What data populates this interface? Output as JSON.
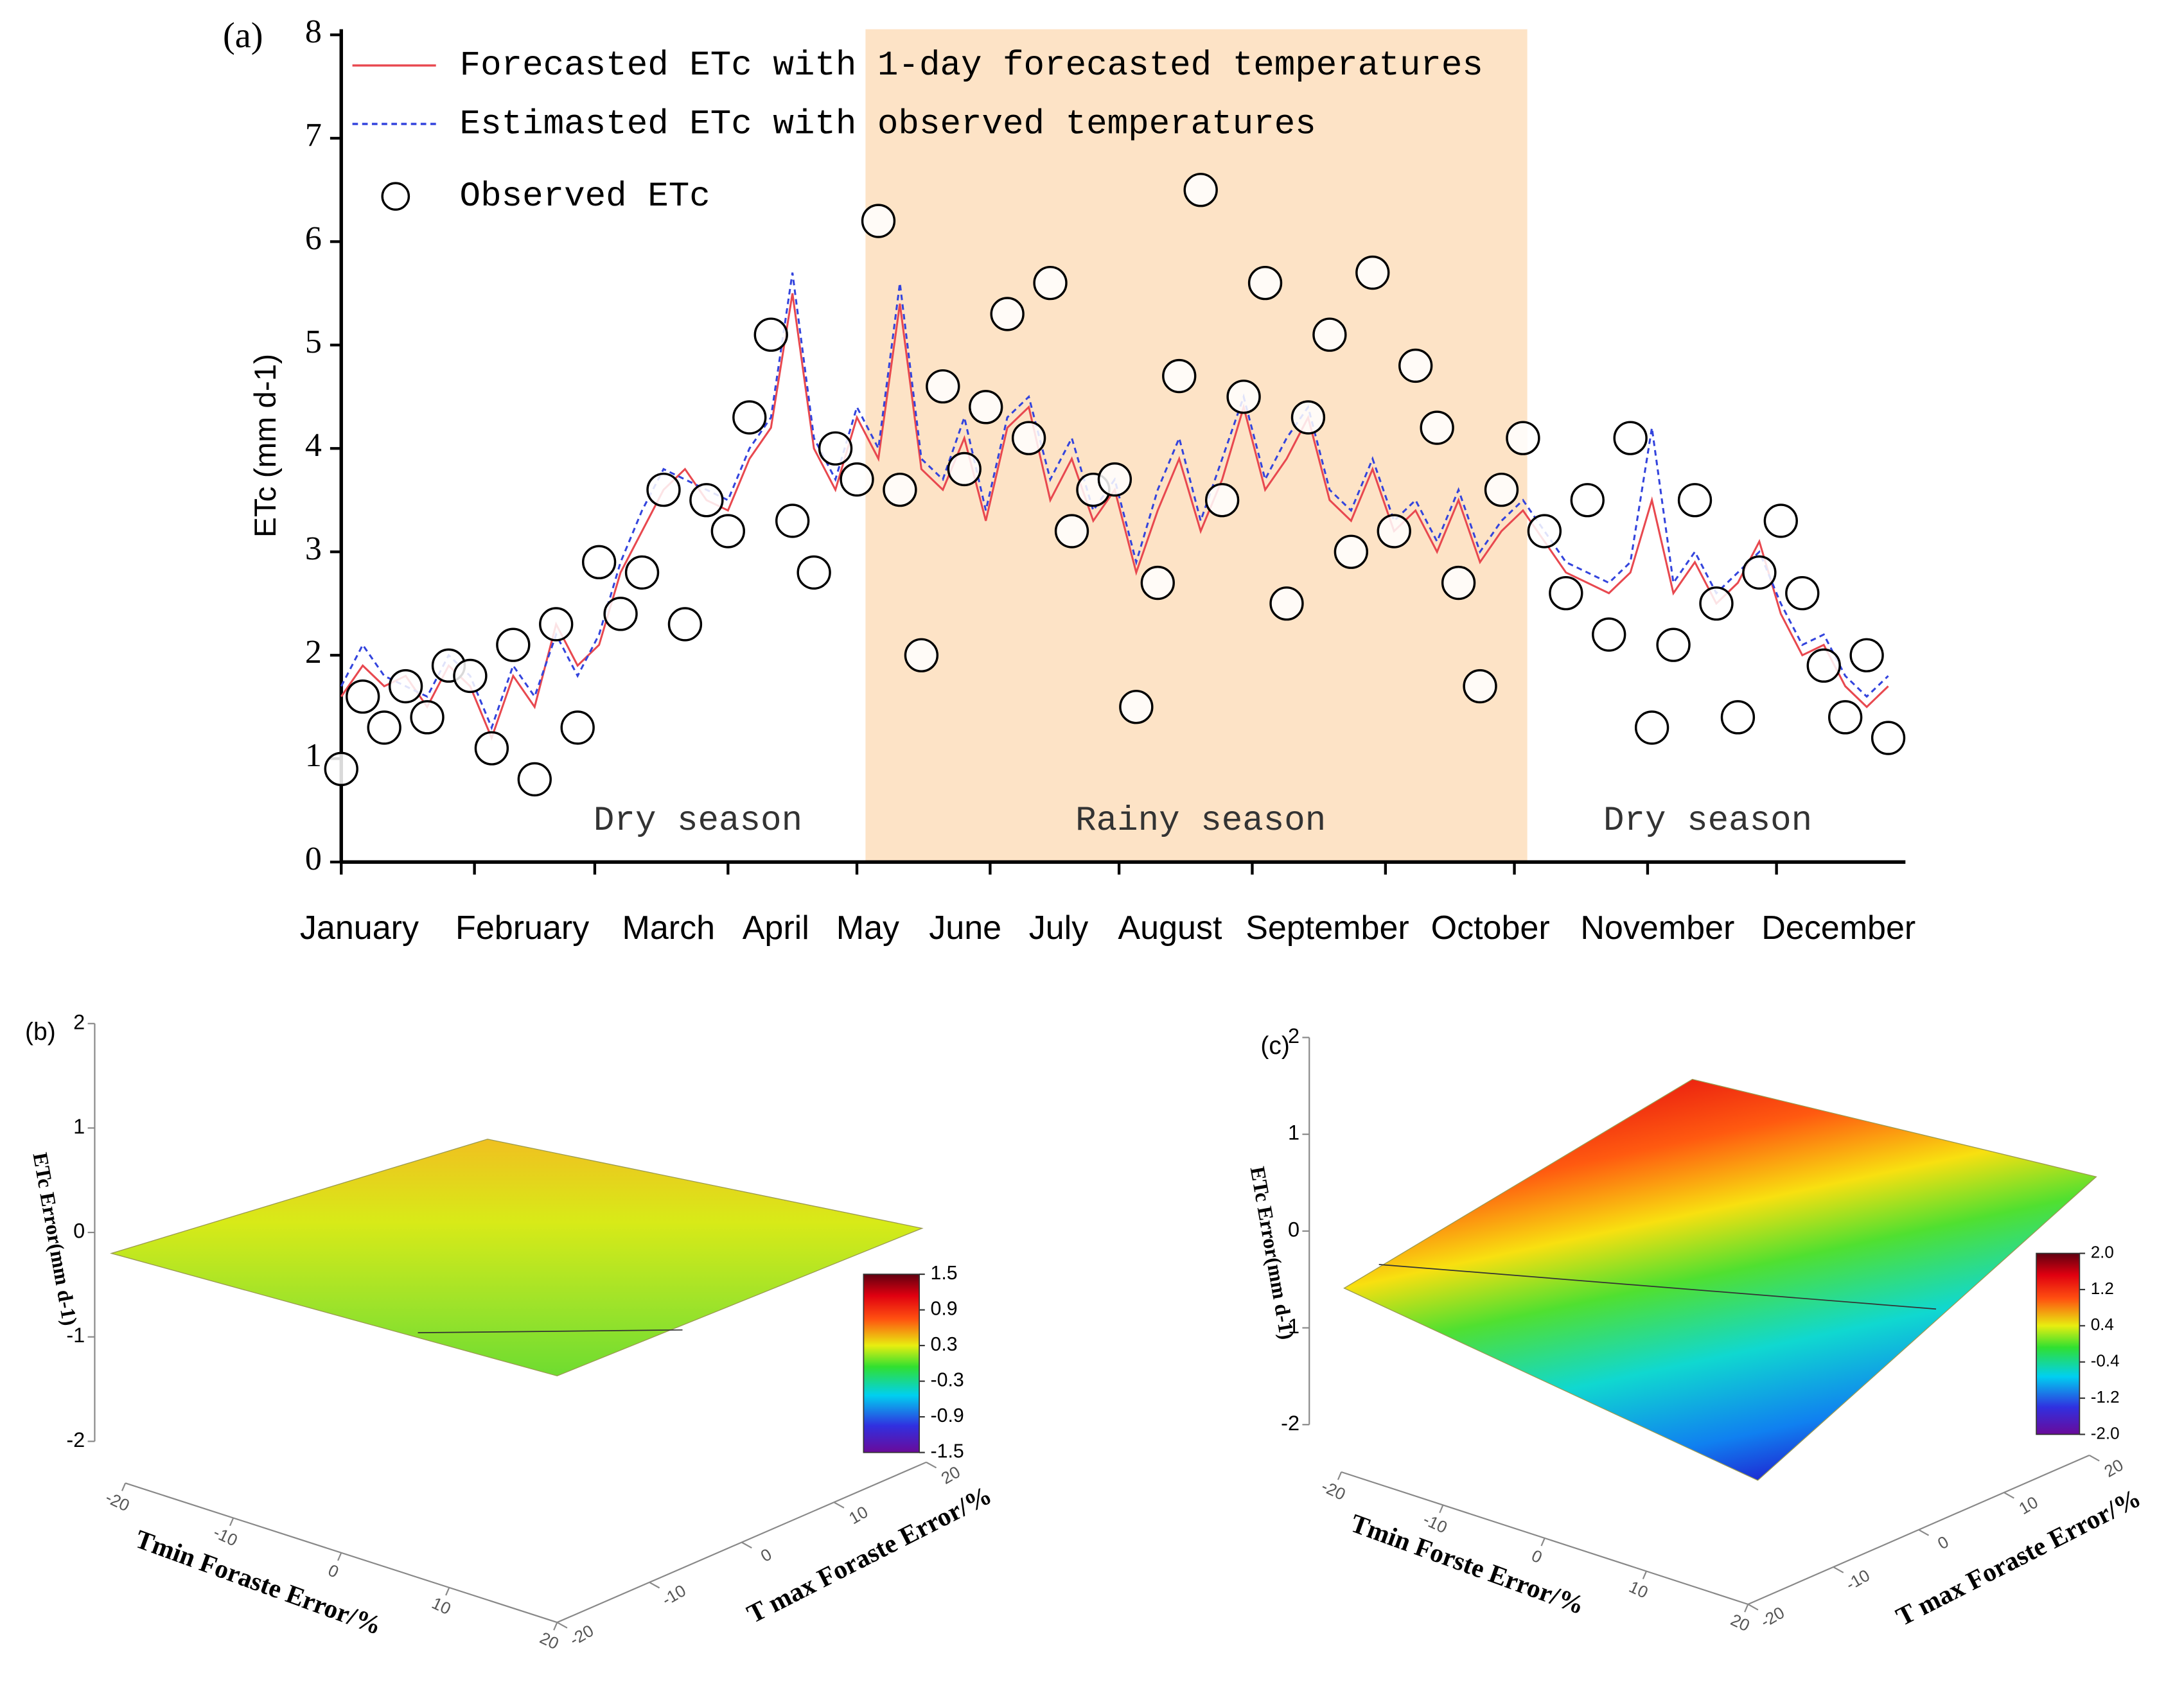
{
  "chart_data": [
    {
      "type": "line_scatter",
      "label": "(a)",
      "ylabel": "ETc (mm d-1)",
      "x": [
        1,
        6,
        11,
        16,
        21,
        26,
        31,
        36,
        41,
        46,
        51,
        56,
        61,
        66,
        71,
        76,
        81,
        86,
        91,
        96,
        101,
        106,
        111,
        116,
        121,
        126,
        131,
        136,
        141,
        146,
        151,
        156,
        161,
        166,
        171,
        176,
        181,
        186,
        191,
        196,
        201,
        206,
        211,
        216,
        221,
        226,
        231,
        236,
        241,
        246,
        251,
        256,
        261,
        266,
        271,
        276,
        281,
        286,
        291,
        296,
        301,
        306,
        311,
        316,
        321,
        326,
        331,
        336,
        341,
        346,
        351,
        356,
        361
      ],
      "series": [
        {
          "name": "Forecasted ETc with 1-day forecasted temperatures",
          "color": "#e8484f",
          "style": "solid",
          "values": [
            1.6,
            1.9,
            1.7,
            1.8,
            1.5,
            1.9,
            1.7,
            1.2,
            1.8,
            1.5,
            2.3,
            1.9,
            2.1,
            2.8,
            3.2,
            3.6,
            3.8,
            3.5,
            3.4,
            3.9,
            4.2,
            5.5,
            4.0,
            3.6,
            4.3,
            3.9,
            5.4,
            3.8,
            3.6,
            4.1,
            3.3,
            4.2,
            4.4,
            3.5,
            3.9,
            3.3,
            3.6,
            2.8,
            3.4,
            3.9,
            3.2,
            3.7,
            4.4,
            3.6,
            3.9,
            4.3,
            3.5,
            3.3,
            3.8,
            3.2,
            3.4,
            3.0,
            3.5,
            2.9,
            3.2,
            3.4,
            3.1,
            2.8,
            2.7,
            2.6,
            2.8,
            3.5,
            2.6,
            2.9,
            2.5,
            2.7,
            3.1,
            2.4,
            2.0,
            2.1,
            1.7,
            1.5,
            1.7
          ]
        },
        {
          "name": "Estimasted ETc with observed temperatures",
          "color": "#3344dd",
          "style": "dashed",
          "values": [
            1.7,
            2.1,
            1.8,
            1.7,
            1.6,
            2.0,
            1.8,
            1.3,
            1.9,
            1.6,
            2.2,
            1.8,
            2.2,
            2.9,
            3.4,
            3.8,
            3.7,
            3.6,
            3.5,
            4.0,
            4.3,
            5.7,
            4.1,
            3.7,
            4.4,
            4.0,
            5.6,
            3.9,
            3.7,
            4.3,
            3.4,
            4.3,
            4.5,
            3.7,
            4.1,
            3.4,
            3.7,
            2.9,
            3.6,
            4.1,
            3.3,
            3.9,
            4.5,
            3.7,
            4.1,
            4.4,
            3.6,
            3.4,
            3.9,
            3.3,
            3.5,
            3.1,
            3.6,
            3.0,
            3.3,
            3.5,
            3.2,
            2.9,
            2.8,
            2.7,
            2.9,
            4.2,
            2.7,
            3.0,
            2.6,
            2.8,
            3.0,
            2.5,
            2.1,
            2.2,
            1.8,
            1.6,
            1.8
          ]
        },
        {
          "name": "Observed ETc",
          "color": "#000000",
          "style": "circle",
          "values": [
            0.9,
            1.6,
            1.3,
            1.7,
            1.4,
            1.9,
            1.8,
            1.1,
            2.1,
            0.8,
            2.3,
            1.3,
            2.9,
            2.4,
            2.8,
            3.6,
            2.3,
            3.5,
            3.2,
            4.3,
            5.1,
            3.3,
            2.8,
            4.0,
            3.7,
            6.2,
            3.6,
            2.0,
            4.6,
            3.8,
            4.4,
            5.3,
            4.1,
            5.6,
            3.2,
            3.6,
            3.7,
            1.5,
            2.7,
            4.7,
            6.5,
            3.5,
            4.5,
            5.6,
            2.5,
            4.3,
            5.1,
            3.0,
            5.7,
            3.2,
            4.8,
            4.2,
            2.7,
            1.7,
            3.6,
            4.1,
            3.2,
            2.6,
            3.5,
            2.2,
            4.1,
            1.3,
            2.1,
            3.5,
            2.5,
            1.4,
            2.8,
            3.3,
            2.6,
            1.9,
            1.4,
            2.0,
            1.2
          ]
        }
      ],
      "xlim": [
        1,
        365
      ],
      "xticks": [
        {
          "value": 1,
          "label": "January"
        },
        {
          "value": 32,
          "label": "February"
        },
        {
          "value": 60,
          "label": "March"
        },
        {
          "value": 91,
          "label": "April"
        },
        {
          "value": 121,
          "label": "May"
        },
        {
          "value": 152,
          "label": "June"
        },
        {
          "value": 182,
          "label": "July"
        },
        {
          "value": 213,
          "label": "August"
        },
        {
          "value": 244,
          "label": "September"
        },
        {
          "value": 274,
          "label": "October"
        },
        {
          "value": 305,
          "label": "November"
        },
        {
          "value": 335,
          "label": "December"
        }
      ],
      "ylim": [
        0,
        8
      ],
      "yticks": [
        0,
        1,
        2,
        3,
        4,
        5,
        6,
        7,
        8
      ],
      "shaded_region": [
        123,
        277
      ],
      "shade_color": "#fde3c6",
      "annotations": [
        "Dry season",
        "Rainy season",
        "Dry season"
      ],
      "legend": "upper left"
    },
    {
      "type": "surface3d",
      "label": "(b)",
      "zlabel": "ETc Error(mm d-1)",
      "xlabel": "Tmin Foraste Error/%",
      "ylabel": "T max Foraste Error/%",
      "xticks": [
        -20,
        -10,
        0,
        10,
        20
      ],
      "yticks": [
        -20,
        -10,
        0,
        10,
        20
      ],
      "zticks": [
        -2,
        -1,
        0,
        1,
        2
      ],
      "colorbar_lim": [
        -1.5,
        1.5
      ],
      "colorbar_ticks": [
        -1.5,
        -0.9,
        -0.3,
        0.3,
        0.9,
        1.5
      ]
    },
    {
      "type": "surface3d",
      "label": "(c)",
      "zlabel": "ETc Error(mm d-1)",
      "xlabel": "Tmin Forste Error/%",
      "ylabel": "T max Foraste Error/%",
      "xticks": [
        -20,
        -10,
        0,
        10,
        20
      ],
      "yticks": [
        -20,
        -10,
        0,
        10,
        20
      ],
      "zticks": [
        -2,
        -1,
        0,
        1,
        2
      ],
      "colorbar_lim": [
        -2,
        2
      ],
      "colorbar_ticks": [
        {
          "value": -2,
          "label": "-2.0"
        },
        -1.2,
        -0.4,
        0.4,
        1.2,
        {
          "value": 2,
          "label": "2.0"
        }
      ]
    }
  ]
}
